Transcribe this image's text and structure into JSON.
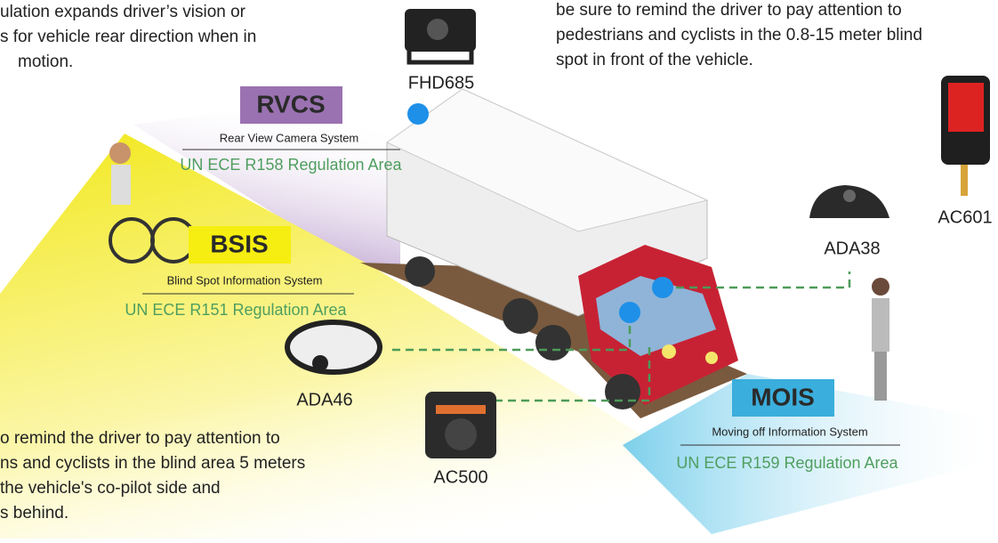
{
  "intro_rvcs": [
    "ulation expands driver’s vision or",
    "s for vehicle rear direction when in",
    "motion."
  ],
  "intro_mois": [
    "be sure to remind the driver to pay attention to",
    "pedestrians and cyclists in the 0.8-15 meter blind",
    "spot in front of the vehicle."
  ],
  "intro_bsis": [
    "o remind the driver to pay attention to",
    "ns and cyclists in the blind area 5 meters",
    "the vehicle's co-pilot side and",
    "s behind."
  ],
  "systems": {
    "rvcs": {
      "badge": "RVCS",
      "name": "Rear View Camera System",
      "regulation": "UN ECE R158 Regulation Area"
    },
    "bsis": {
      "badge": "BSIS",
      "name": "Blind Spot Information System",
      "regulation": "UN ECE R151 Regulation Area"
    },
    "mois": {
      "badge": "MOIS",
      "name": "Moving off Information System",
      "regulation": "UN ECE R159 Regulation Area"
    }
  },
  "devices": {
    "fhd685": "FHD685",
    "ada46": "ADA46",
    "ac500": "AC500",
    "ada38": "ADA38",
    "ac601": "AC601"
  }
}
